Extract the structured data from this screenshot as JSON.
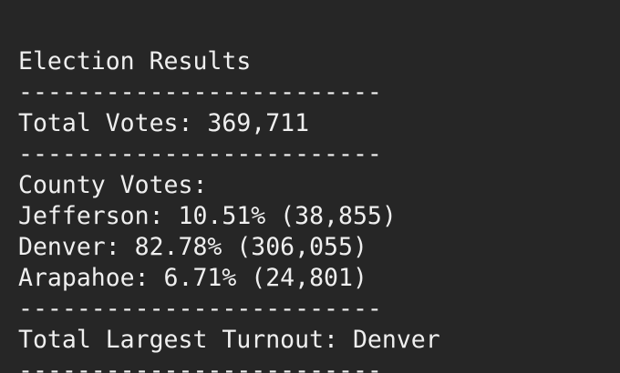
{
  "console": {
    "lines": [
      "Election Results",
      "-------------------------",
      "Total Votes: 369,711",
      "-------------------------",
      "County Votes:",
      "Jefferson: 10.51% (38,855)",
      "Denver: 82.78% (306,055)",
      "Arapahoe: 6.71% (24,801)",
      "-------------------------",
      "Total Largest Turnout: Denver",
      "-------------------------"
    ]
  },
  "colors": {
    "background": "#262626",
    "text": "#efefef"
  }
}
